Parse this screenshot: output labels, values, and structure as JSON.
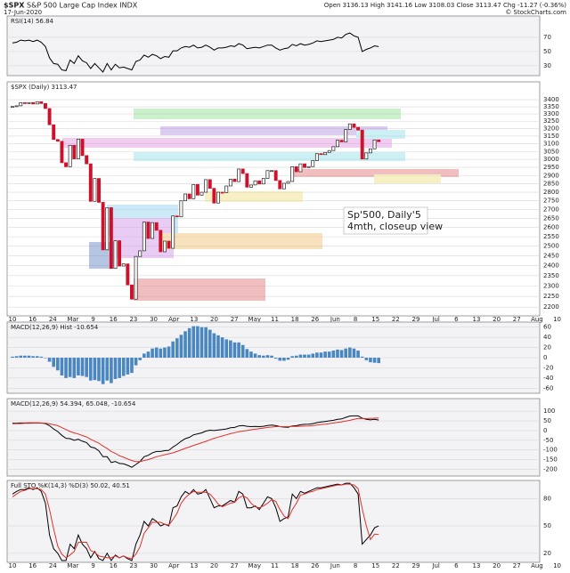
{
  "header": {
    "symbol": "$SPX",
    "name": "S&P 500 Large Cap Index INDX",
    "date": "17-Jun-2020",
    "quote": "Open 3136.13  High 3141.16  Low 3108.03  Close 3113.47  Chg -11.27 (-0.36%)",
    "source": "© StockCharts.com"
  },
  "chart_data": [
    {
      "type": "line",
      "title": "RSI(14) 56.84",
      "ylim": [
        16,
        100
      ],
      "yticks": [
        70,
        50,
        30
      ],
      "grid": true,
      "series": [
        {
          "name": "RSI",
          "color": "#000000",
          "values": [
            62,
            63,
            66,
            65,
            66,
            64,
            66,
            63,
            57,
            41,
            33,
            32,
            24,
            23,
            38,
            33,
            44,
            37,
            34,
            26,
            33,
            27,
            21,
            33,
            24,
            32,
            27,
            28,
            26,
            24,
            36,
            38,
            45,
            42,
            46,
            44,
            40,
            43,
            42,
            51,
            51,
            55,
            57,
            56,
            59,
            55,
            56,
            59,
            56,
            52,
            55,
            55,
            56,
            58,
            57,
            61,
            59,
            54,
            55,
            56,
            55,
            57,
            59,
            59,
            55,
            52,
            54,
            55,
            60,
            58,
            61,
            59,
            60,
            62,
            65,
            64,
            65,
            66,
            67,
            70,
            69,
            74,
            76,
            72,
            70,
            50,
            53,
            55,
            58,
            56.84
          ]
        }
      ]
    },
    {
      "type": "candlestick",
      "title": "$SPX (Daily) 3113.47",
      "log_scale": true,
      "ylim": [
        2160,
        3530
      ],
      "yticks": [
        3400,
        3350,
        3300,
        3250,
        3200,
        3150,
        3100,
        3050,
        3000,
        2950,
        2900,
        2850,
        2800,
        2750,
        2700,
        2650,
        2600,
        2550,
        2500,
        2450,
        2400,
        2350,
        2300,
        2250,
        2200
      ],
      "grid": true,
      "up_color": "#222222",
      "down_color": "#d0102a",
      "x_tick_labels": [
        "10",
        "16",
        "24",
        "Mar",
        "9",
        "16",
        "23",
        "30",
        "Apr",
        "13",
        "20",
        "27",
        "May",
        "11",
        "18",
        "26",
        "Jun",
        "8",
        "15",
        "22",
        "29",
        "Jul",
        "6",
        "13",
        "20",
        "27",
        "Aug",
        "10"
      ],
      "annotation": [
        "Sp'500, Daily'5",
        "4mth, closeup view"
      ],
      "series": [
        {
          "name": "Close",
          "values": [
            3352,
            3357,
            3379,
            3373,
            3380,
            3370,
            3386,
            3373,
            3338,
            3226,
            3128,
            3116,
            2979,
            2954,
            3090,
            3003,
            3130,
            3024,
            2972,
            2747,
            2882,
            2741,
            2481,
            2711,
            2386,
            2529,
            2398,
            2409,
            2305,
            2237,
            2447,
            2476,
            2630,
            2541,
            2627,
            2585,
            2471,
            2527,
            2489,
            2664,
            2659,
            2750,
            2790,
            2762,
            2846,
            2783,
            2800,
            2875,
            2823,
            2737,
            2800,
            2798,
            2837,
            2878,
            2863,
            2940,
            2912,
            2830,
            2843,
            2868,
            2849,
            2882,
            2930,
            2930,
            2870,
            2820,
            2853,
            2864,
            2954,
            2923,
            2972,
            2949,
            2955,
            2992,
            3036,
            3030,
            3044,
            3056,
            3081,
            3123,
            3112,
            3194,
            3232,
            3208,
            3190,
            3002,
            3041,
            3067,
            3125,
            3113.47
          ]
        }
      ]
    },
    {
      "type": "bar",
      "title": "MACD(12,26,9) Hist -10.654",
      "ylim": [
        -70,
        70
      ],
      "yticks": [
        60,
        40,
        20,
        0,
        -20,
        -40,
        -60
      ],
      "grid": true,
      "series": [
        {
          "name": "Hist",
          "color": "#4a86c0",
          "values": [
            2,
            3,
            4,
            4,
            4,
            3,
            3,
            2,
            0,
            -8,
            -18,
            -25,
            -35,
            -40,
            -38,
            -40,
            -35,
            -36,
            -38,
            -45,
            -44,
            -46,
            -52,
            -45,
            -50,
            -42,
            -40,
            -36,
            -33,
            -30,
            -15,
            -5,
            8,
            12,
            18,
            20,
            18,
            20,
            22,
            32,
            38,
            45,
            52,
            58,
            62,
            62,
            60,
            60,
            55,
            48,
            44,
            40,
            36,
            34,
            30,
            30,
            25,
            17,
            12,
            8,
            5,
            4,
            5,
            4,
            -2,
            -6,
            -6,
            -4,
            3,
            4,
            6,
            6,
            6,
            8,
            10,
            10,
            12,
            12,
            14,
            16,
            15,
            18,
            20,
            18,
            14,
            2,
            -5,
            -9,
            -10,
            -10.654
          ]
        }
      ]
    },
    {
      "type": "line",
      "title": "MACD(12,26,9) 54.394, 65.048, -10.654",
      "ylim": [
        -235,
        165
      ],
      "yticks": [
        100,
        50,
        0,
        -50,
        -100,
        -150,
        -200
      ],
      "grid": true,
      "series": [
        {
          "name": "MACD",
          "color": "#000000",
          "values": [
            38,
            38,
            39,
            39,
            40,
            40,
            40,
            39,
            36,
            25,
            8,
            -5,
            -25,
            -40,
            -42,
            -50,
            -45,
            -55,
            -62,
            -85,
            -90,
            -105,
            -135,
            -135,
            -165,
            -160,
            -170,
            -172,
            -180,
            -190,
            -175,
            -160,
            -135,
            -128,
            -115,
            -108,
            -108,
            -104,
            -102,
            -85,
            -72,
            -55,
            -42,
            -35,
            -22,
            -17,
            -12,
            -3,
            2,
            0,
            3,
            5,
            8,
            14,
            16,
            24,
            26,
            22,
            20,
            21,
            20,
            22,
            26,
            28,
            25,
            20,
            18,
            17,
            24,
            25,
            30,
            32,
            33,
            36,
            41,
            44,
            47,
            50,
            53,
            58,
            60,
            68,
            75,
            76,
            76,
            64,
            58,
            55,
            58,
            54.394
          ]
        },
        {
          "name": "Signal",
          "color": "#e0302a",
          "values": [
            35,
            36,
            36,
            37,
            37,
            38,
            38,
            38,
            38,
            35,
            30,
            25,
            15,
            5,
            -5,
            -12,
            -18,
            -26,
            -33,
            -45,
            -55,
            -65,
            -80,
            -93,
            -108,
            -118,
            -130,
            -138,
            -147,
            -155,
            -160,
            -160,
            -155,
            -150,
            -143,
            -135,
            -130,
            -125,
            -120,
            -115,
            -108,
            -100,
            -92,
            -85,
            -77,
            -70,
            -63,
            -56,
            -48,
            -40,
            -34,
            -28,
            -22,
            -16,
            -11,
            -6,
            -3,
            0,
            4,
            7,
            10,
            13,
            16,
            18,
            20,
            20,
            20,
            20,
            21,
            21,
            22,
            23,
            24,
            26,
            28,
            31,
            33,
            36,
            39,
            42,
            45,
            49,
            53,
            58,
            62,
            62,
            62,
            63,
            64,
            65.048
          ]
        }
      ]
    },
    {
      "type": "line",
      "title": "Full STO %K(14,3) %D(3) 50.02, 40.51",
      "ylim": [
        10,
        100
      ],
      "yticks": [
        80,
        50,
        20
      ],
      "grid": true,
      "series": [
        {
          "name": "%K",
          "color": "#000000",
          "values": [
            85,
            88,
            90,
            90,
            92,
            90,
            92,
            88,
            75,
            40,
            25,
            20,
            12,
            12,
            30,
            25,
            40,
            30,
            25,
            15,
            22,
            14,
            12,
            20,
            12,
            18,
            15,
            17,
            14,
            12,
            30,
            40,
            55,
            50,
            58,
            55,
            50,
            52,
            50,
            70,
            72,
            82,
            88,
            85,
            90,
            85,
            86,
            90,
            80,
            70,
            72,
            72,
            75,
            78,
            76,
            88,
            85,
            70,
            70,
            72,
            68,
            75,
            82,
            80,
            70,
            55,
            58,
            60,
            85,
            80,
            88,
            86,
            88,
            90,
            92,
            92,
            93,
            94,
            95,
            96,
            95,
            97,
            97,
            92,
            85,
            30,
            35,
            40,
            48,
            50.02
          ]
        },
        {
          "name": "%D",
          "color": "#e0302a",
          "values": [
            82,
            85,
            88,
            89,
            91,
            91,
            91,
            90,
            85,
            68,
            47,
            28,
            19,
            15,
            18,
            22,
            32,
            32,
            32,
            23,
            21,
            17,
            16,
            15,
            15,
            17,
            15,
            17,
            15,
            14,
            19,
            27,
            42,
            48,
            54,
            54,
            54,
            52,
            51,
            57,
            64,
            75,
            81,
            85,
            88,
            87,
            87,
            87,
            85,
            80,
            74,
            71,
            73,
            75,
            76,
            81,
            83,
            81,
            75,
            71,
            70,
            72,
            75,
            79,
            77,
            68,
            61,
            58,
            68,
            75,
            84,
            85,
            87,
            88,
            90,
            91,
            92,
            93,
            94,
            95,
            95,
            96,
            96,
            95,
            91,
            69,
            50,
            35,
            41,
            40.51
          ]
        }
      ]
    }
  ]
}
